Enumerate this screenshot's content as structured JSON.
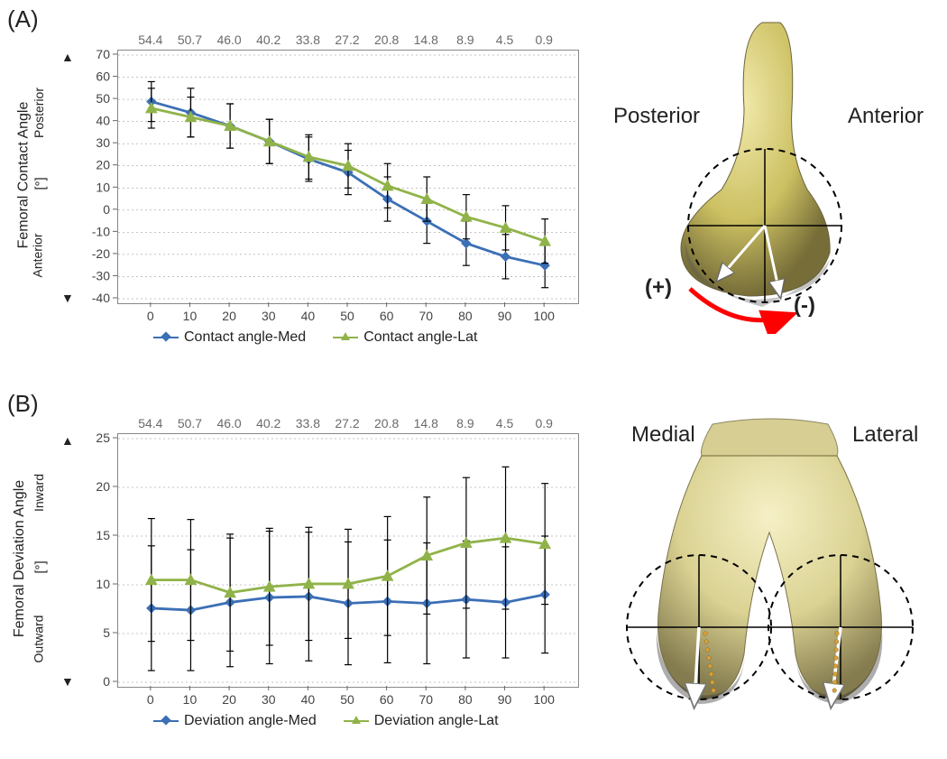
{
  "panelA": {
    "label": "(A)",
    "chart": {
      "type": "line",
      "x": [
        0,
        10,
        20,
        30,
        40,
        50,
        60,
        70,
        80,
        90,
        100
      ],
      "top_values": [
        54.4,
        50.7,
        46.0,
        40.2,
        33.8,
        27.2,
        20.8,
        14.8,
        8.9,
        4.5,
        0.9
      ],
      "series": [
        {
          "name": "Contact angle-Med",
          "color": "#3b6fb6",
          "marker": "diamond",
          "y": [
            49,
            44,
            38,
            31,
            23,
            17,
            5,
            -5,
            -15,
            -21,
            -25
          ],
          "err": [
            9,
            11,
            10,
            10,
            10,
            10,
            10,
            10,
            10,
            10,
            10
          ]
        },
        {
          "name": "Contact angle-Lat",
          "color": "#90b349",
          "marker": "triangle",
          "y": [
            46,
            42,
            38,
            31,
            24,
            20,
            11,
            5,
            -3,
            -8,
            -14
          ],
          "err": [
            9,
            9,
            10,
            10,
            10,
            10,
            10,
            10,
            10,
            10,
            10
          ]
        }
      ],
      "ylim": [
        -40,
        70
      ],
      "ytick_step": 10,
      "xlim": [
        -5,
        105
      ],
      "xtick_step": 10,
      "ylabel_main": "Femoral Contact Angle",
      "ylabel_unit": "[°]",
      "ylabel_pos": "Posterior",
      "ylabel_neg": "Anterior",
      "legend": [
        "Contact angle-Med",
        "Contact angle-Lat"
      ]
    },
    "diagram": {
      "label_left": "Posterior",
      "label_right": "Anterior",
      "sign_pos": "(+)",
      "sign_neg": "(-)",
      "arrow_color": "#ff0000"
    }
  },
  "panelB": {
    "label": "(B)",
    "chart": {
      "type": "line",
      "x": [
        0,
        10,
        20,
        30,
        40,
        50,
        60,
        70,
        80,
        90,
        100
      ],
      "top_values": [
        54.4,
        50.7,
        46.0,
        40.2,
        33.8,
        27.2,
        20.8,
        14.8,
        8.9,
        4.5,
        0.9
      ],
      "series": [
        {
          "name": "Deviation angle-Med",
          "color": "#3b6fb6",
          "marker": "diamond",
          "y": [
            7.6,
            7.4,
            8.2,
            8.7,
            8.8,
            8.1,
            8.3,
            8.1,
            8.5,
            8.2,
            9.0
          ],
          "err": [
            6.4,
            6.2,
            6.6,
            6.8,
            6.6,
            6.3,
            6.3,
            6.2,
            6.0,
            5.7,
            6.0
          ]
        },
        {
          "name": "Deviation angle-Lat",
          "color": "#90b349",
          "marker": "triangle",
          "y": [
            10.5,
            10.5,
            9.2,
            9.8,
            10.1,
            10.1,
            10.9,
            13.0,
            14.3,
            14.8,
            14.2
          ],
          "err": [
            6.3,
            6.2,
            6.0,
            6.0,
            5.8,
            5.6,
            6.1,
            6.0,
            6.7,
            7.3,
            6.2
          ]
        }
      ],
      "ylim": [
        0,
        25
      ],
      "ytick_step": 5,
      "xlim": [
        -5,
        105
      ],
      "xtick_step": 10,
      "ylabel_main": "Femoral Deviation Angle",
      "ylabel_unit": "[°]",
      "ylabel_pos": "Inward",
      "ylabel_neg": "Outward",
      "legend": [
        "Deviation angle-Med",
        "Deviation angle-Lat"
      ]
    },
    "diagram": {
      "label_left": "Medial",
      "label_right": "Lateral"
    }
  },
  "style": {
    "background_color": "#ffffff",
    "grid_color": "#888888",
    "tick_fontsize": 14,
    "label_fontsize": 16,
    "title_fontsize": 26,
    "line_width": 2.5,
    "marker_size": 9,
    "errorbar_color": "#000000",
    "errorbar_width": 1.2
  }
}
